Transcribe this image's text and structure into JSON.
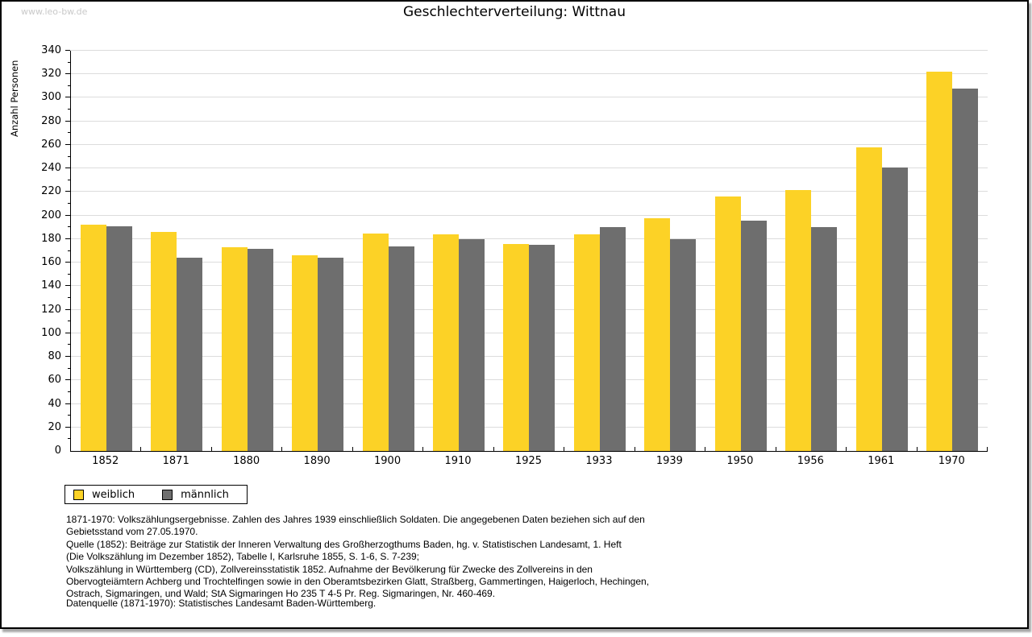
{
  "watermark": "www.leo-bw.de",
  "title": "Geschlechterverteilung: Wittnau",
  "chart_data": {
    "type": "bar",
    "title": "Geschlechterverteilung: Wittnau",
    "xlabel": "",
    "ylabel": "Anzahl Personen",
    "ylim": [
      0,
      340
    ],
    "ytick_step": 20,
    "ytick_minor_step": 10,
    "grid": true,
    "legend_position": "bottom-left",
    "categories": [
      "1852",
      "1871",
      "1880",
      "1890",
      "1900",
      "1910",
      "1925",
      "1933",
      "1939",
      "1950",
      "1956",
      "1961",
      "1970"
    ],
    "series": [
      {
        "name": "weiblich",
        "color": "#fcd226",
        "values": [
          192,
          186,
          173,
          166,
          185,
          184,
          176,
          184,
          198,
          216,
          222,
          258,
          322
        ]
      },
      {
        "name": "männlich",
        "color": "#6e6e6e",
        "values": [
          191,
          164,
          172,
          164,
          174,
          180,
          175,
          190,
          180,
          196,
          190,
          241,
          308
        ]
      }
    ]
  },
  "legend": {
    "items": [
      {
        "label": "weiblich",
        "color": "#fcd226"
      },
      {
        "label": "männlich",
        "color": "#6e6e6e"
      }
    ]
  },
  "footnotes": {
    "lines": [
      "1871-1970: Volkszählungsergebnisse. Zahlen des Jahres 1939 einschließlich Soldaten. Die angegebenen Daten beziehen sich auf den",
      "Gebietsstand vom 27.05.1970.",
      "Quelle (1852): Beiträge zur Statistik der Inneren Verwaltung des Großherzogthums Baden, hg. v. Statistischen Landesamt, 1. Heft",
      "(Die Volkszählung im Dezember 1852), Tabelle I, Karlsruhe 1855, S. 1-6, S. 7-239;",
      "Volkszählung in Württemberg (CD), Zollvereinsstatistik 1852. Aufnahme der Bevölkerung für Zwecke des Zollvereins in den",
      "Obervogteiämtern Achberg und Trochtelfingen sowie in den Oberamtsbezirken Glatt, Straßberg, Gammertingen, Haigerloch, Hechingen,",
      "Ostrach, Sigmaringen, und Wald; StA Sigmaringen Ho 235 T 4-5 Pr. Reg. Sigmaringen, Nr. 460-469."
    ],
    "datasource": "Datenquelle (1871-1970): Statistisches Landesamt Baden-Württemberg."
  }
}
